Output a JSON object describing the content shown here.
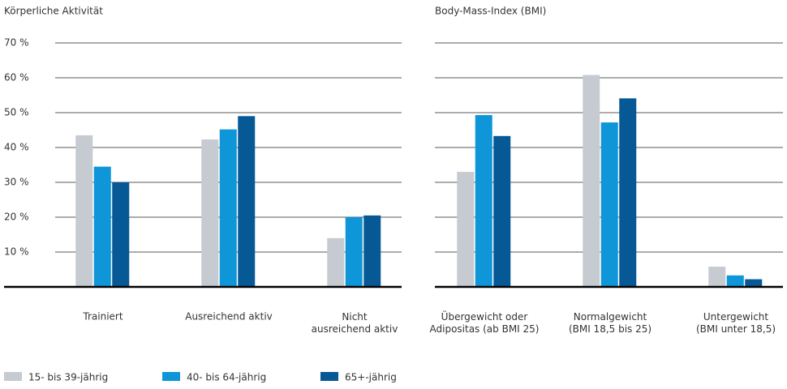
{
  "chart_data": [
    {
      "type": "bar",
      "title": "Körperliche Aktivität",
      "categories": [
        "Trainiert",
        "Ausreichend aktiv",
        "Nicht\nausreichend aktiv"
      ],
      "series": [
        {
          "name": "15- bis 39-jährig",
          "color": "#c5cbd0",
          "values": [
            43.5,
            42.3,
            14
          ]
        },
        {
          "name": "40- bis 64-jährig",
          "color": "#0f96d8",
          "values": [
            34.5,
            45.2,
            20
          ]
        },
        {
          "name": "65+-jährig",
          "color": "#075996",
          "values": [
            30,
            49,
            20.5
          ]
        }
      ],
      "ylim": [
        0,
        70
      ],
      "yticks": [
        {
          "value": 10,
          "label": "10 %"
        },
        {
          "value": 20,
          "label": "20 %"
        },
        {
          "value": 30,
          "label": "30 %"
        },
        {
          "value": 40,
          "label": "40 %"
        },
        {
          "value": 50,
          "label": "50 %"
        },
        {
          "value": 60,
          "label": "60 %"
        },
        {
          "value": 70,
          "label": "70 %"
        }
      ],
      "grid": true
    },
    {
      "type": "bar",
      "title": "Body-Mass-Index (BMI)",
      "categories": [
        "Übergewicht oder\nAdipositas (ab BMI 25)",
        "Normalgewicht\n(BMI 18,5 bis 25)",
        "Untergewicht\n(BMI unter 18,5)"
      ],
      "series": [
        {
          "name": "15- bis 39-jährig",
          "color": "#c5cbd0",
          "values": [
            33,
            60.8,
            5.8
          ]
        },
        {
          "name": "40- bis 64-jährig",
          "color": "#0f96d8",
          "values": [
            49.3,
            47.2,
            3.3
          ]
        },
        {
          "name": "65+-jährig",
          "color": "#075996",
          "values": [
            43.3,
            54.1,
            2.2
          ]
        }
      ],
      "ylim": [
        0,
        70
      ],
      "yticks": [
        10,
        20,
        30,
        40,
        50,
        60,
        70
      ],
      "grid": true
    }
  ]
}
